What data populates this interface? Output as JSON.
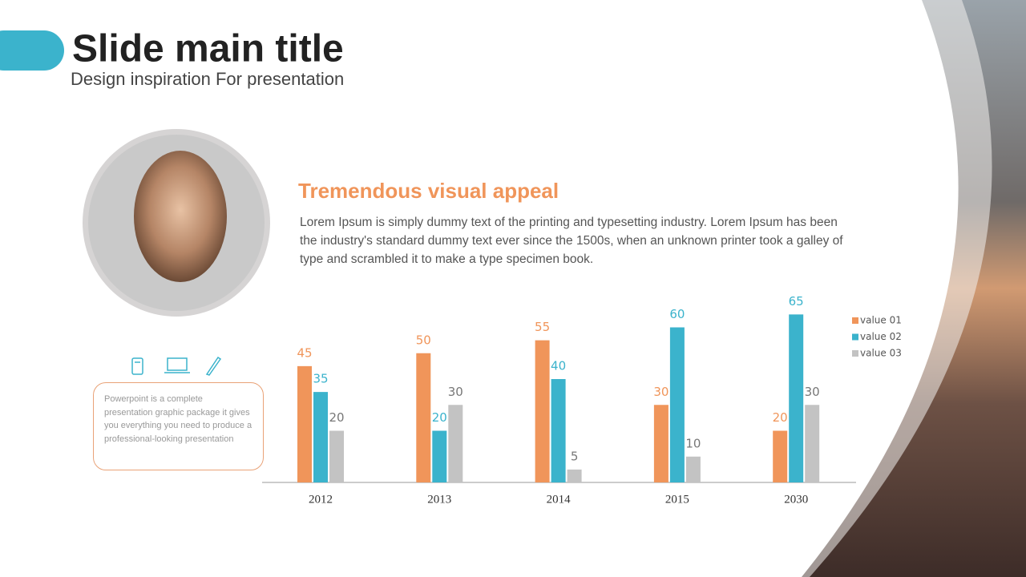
{
  "header": {
    "title": "Slide main title",
    "subtitle": "Design inspiration For presentation"
  },
  "section": {
    "heading": "Tremendous visual appeal",
    "body": "Lorem Ipsum is simply dummy text of the printing and typesetting industry. Lorem Ipsum has been the industry's standard dummy text ever since the 1500s, when an unknown printer took a galley of type and scrambled it to make a type specimen book."
  },
  "note": "Powerpoint is a complete presentation graphic package it gives you everything you need to produce a professional-looking presentation",
  "chart_data": {
    "type": "bar",
    "categories": [
      "2012",
      "2013",
      "2014",
      "2015",
      "2030"
    ],
    "series": [
      {
        "name": "value 01",
        "color": "#f0955a",
        "values": [
          45,
          50,
          55,
          30,
          20
        ]
      },
      {
        "name": "value 02",
        "color": "#3bb3cc",
        "values": [
          35,
          20,
          40,
          60,
          65
        ]
      },
      {
        "name": "value 03",
        "color": "#c3c3c3",
        "values": [
          20,
          30,
          5,
          10,
          30
        ]
      }
    ],
    "legend": "right"
  }
}
